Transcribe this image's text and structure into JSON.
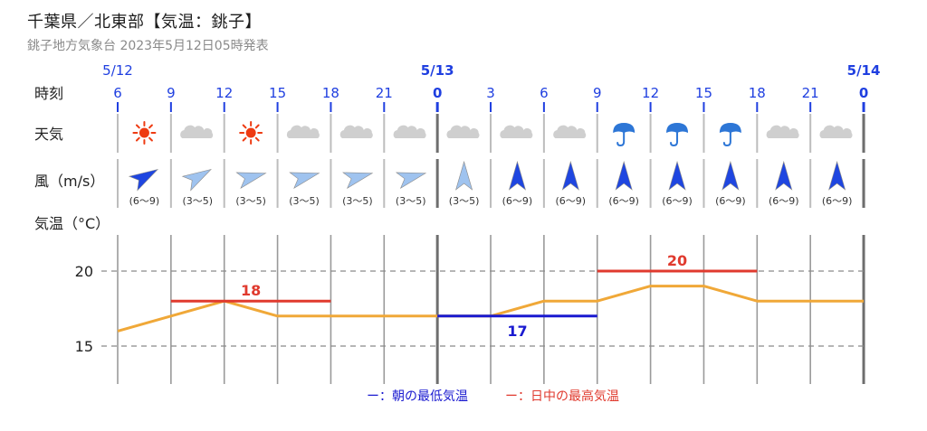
{
  "header": {
    "title": "千葉県／北東部【気温：銚子】",
    "subtitle": "銚子地方気象台 2023年5月12日05時発表"
  },
  "labels": {
    "time": "時刻",
    "weather": "天気",
    "wind": "風（m/s）",
    "temp": "気温（°C）"
  },
  "legend": {
    "min_label": "ー：朝の最低気温",
    "max_label": "ー：日中の最高気温"
  },
  "colors": {
    "time_text": "#1f3fe0",
    "min_line": "#1a1ad0",
    "max_line": "#e03a2e",
    "temp_line": "#f0a838",
    "wind_strong": "#1f46e0",
    "wind_weak": "#9fc3ef",
    "sun": "#ee3b12",
    "cloud": "#cfcfcf",
    "umbrella": "#2d76d6"
  },
  "chart_data": {
    "type": "line",
    "date_labels": [
      {
        "col": 0,
        "text": "5/12",
        "bold": false
      },
      {
        "col": 6,
        "text": "5/13",
        "bold": true
      },
      {
        "col": 14,
        "text": "5/14",
        "bold": true
      }
    ],
    "hours": [
      "6",
      "9",
      "12",
      "15",
      "18",
      "21",
      "0",
      "3",
      "6",
      "9",
      "12",
      "15",
      "18",
      "21",
      "0"
    ],
    "weather": [
      "sun-icon",
      "cloud-icon",
      "sun-icon",
      "cloud-icon",
      "cloud-icon",
      "cloud-icon",
      "cloud-icon",
      "cloud-icon",
      "cloud-icon",
      "umbrella-icon",
      "umbrella-icon",
      "umbrella-icon",
      "cloud-icon",
      "cloud-icon"
    ],
    "wind": [
      {
        "dir_deg": 60,
        "speed": "(6〜9)",
        "strong": true
      },
      {
        "dir_deg": 60,
        "speed": "(3〜5)",
        "strong": false
      },
      {
        "dir_deg": 75,
        "speed": "(3〜5)",
        "strong": false
      },
      {
        "dir_deg": 75,
        "speed": "(3〜5)",
        "strong": false
      },
      {
        "dir_deg": 75,
        "speed": "(3〜5)",
        "strong": false
      },
      {
        "dir_deg": 75,
        "speed": "(3〜5)",
        "strong": false
      },
      {
        "dir_deg": 0,
        "speed": "(3〜5)",
        "strong": false
      },
      {
        "dir_deg": 0,
        "speed": "(6〜9)",
        "strong": true
      },
      {
        "dir_deg": 0,
        "speed": "(6〜9)",
        "strong": true
      },
      {
        "dir_deg": 0,
        "speed": "(6〜9)",
        "strong": true
      },
      {
        "dir_deg": 0,
        "speed": "(6〜9)",
        "strong": true
      },
      {
        "dir_deg": 0,
        "speed": "(6〜9)",
        "strong": true
      },
      {
        "dir_deg": 0,
        "speed": "(6〜9)",
        "strong": true
      },
      {
        "dir_deg": 0,
        "speed": "(6〜9)",
        "strong": true
      }
    ],
    "temp_line": {
      "x_hours": [
        6,
        9,
        12,
        15,
        18,
        21,
        24,
        27,
        30,
        33,
        36,
        39,
        42,
        45,
        48
      ],
      "y": [
        16,
        17,
        18,
        17,
        17,
        17,
        17,
        17,
        18,
        18,
        19,
        19,
        18,
        18,
        18
      ]
    },
    "yticks": [
      15,
      20
    ],
    "ylim": [
      12.5,
      22.5
    ],
    "max_temps": [
      {
        "from_col": 1,
        "to_col": 4,
        "value": 18
      },
      {
        "from_col": 9,
        "to_col": 12,
        "value": 20
      }
    ],
    "min_temps": [
      {
        "from_col": 6,
        "to_col": 9,
        "value": 17
      }
    ]
  }
}
